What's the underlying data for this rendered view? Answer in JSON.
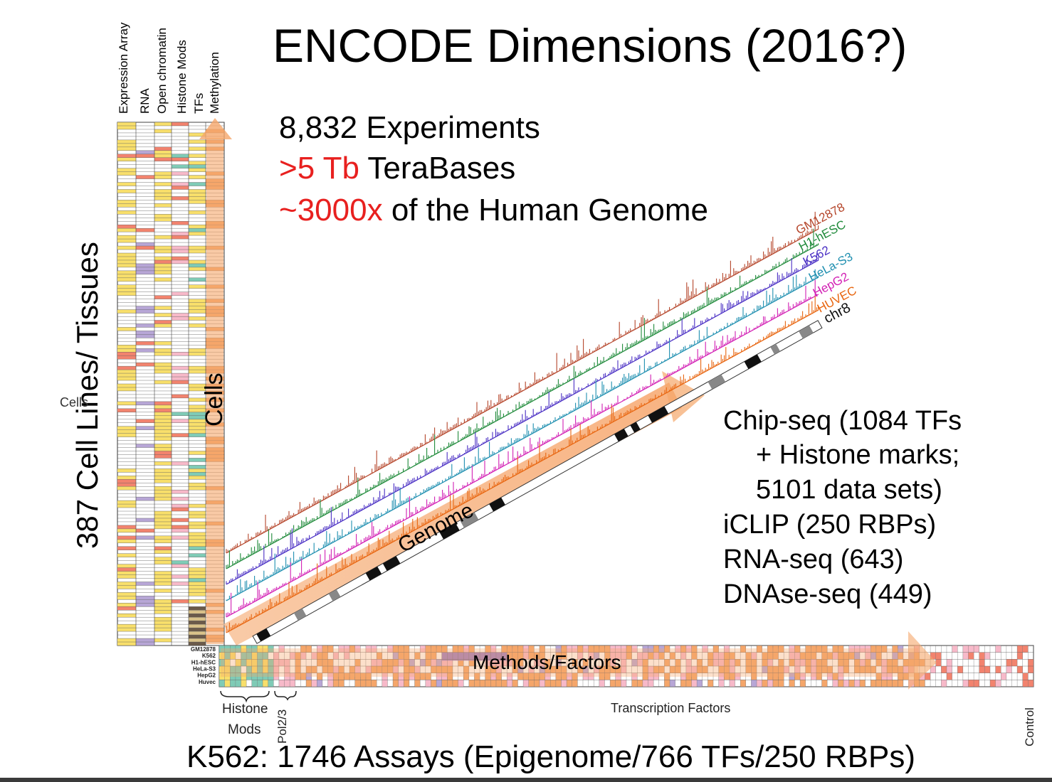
{
  "title": "ENCODE Dimensions (2016?)",
  "stats": {
    "experiments": "8,832 Experiments",
    "terabases_highlight": ">5 Tb",
    "terabases_label": "TeraBases",
    "genome_highlight": "~3000x",
    "genome_label": "of the Human Genome"
  },
  "assays": [
    "Chip-seq (1084 TFs",
    "+ Histone marks;",
    "5101 data sets)",
    "iCLIP (250 RBPs)",
    "RNA-seq (643)",
    "DNAse-seq (449)"
  ],
  "cell_lines_caption": "387 Cell Lines/ Tissues",
  "cells_small_label": "Cells",
  "cells_arrow_label": "Cells",
  "column_headers": [
    "Expression Array",
    "RNA",
    "Open chromatin",
    "Histone Mods",
    "TFs",
    "Methylation"
  ],
  "genome_label": "Genome",
  "methods_label": "Methods/Factors",
  "tracks": [
    {
      "name": "GM12878",
      "color": "#b5452a"
    },
    {
      "name": "H1-hESC",
      "color": "#1f8a3a"
    },
    {
      "name": "K562",
      "color": "#4a2fc4"
    },
    {
      "name": "HeLa-S3",
      "color": "#1f8fb0"
    },
    {
      "name": "HepG2",
      "color": "#d21fb4"
    },
    {
      "name": "HUVEC",
      "color": "#e8650f"
    },
    {
      "name": "chr8",
      "color": "#111111"
    }
  ],
  "factor_rows": [
    "GM12878",
    "K562",
    "H1-hESC",
    "HeLa-S3",
    "HepG2",
    "Huvec"
  ],
  "groups": {
    "histone_line1": "Histone",
    "histone_line2": "Mods",
    "pol": "Pol2/3",
    "tf": "Transcription Factors",
    "control": "Control"
  },
  "colors": {
    "yellow": "#f8df6b",
    "salmon": "#f2836e",
    "pink": "#f7b9c9",
    "teal": "#7fcbb6",
    "lavender": "#b7a6d6",
    "orange": "#f5a66a",
    "accent_red": "#e8201f"
  },
  "bottom_caption": "K562: 1746 Assays (Epigenome/766 TFs/250 RBPs)"
}
